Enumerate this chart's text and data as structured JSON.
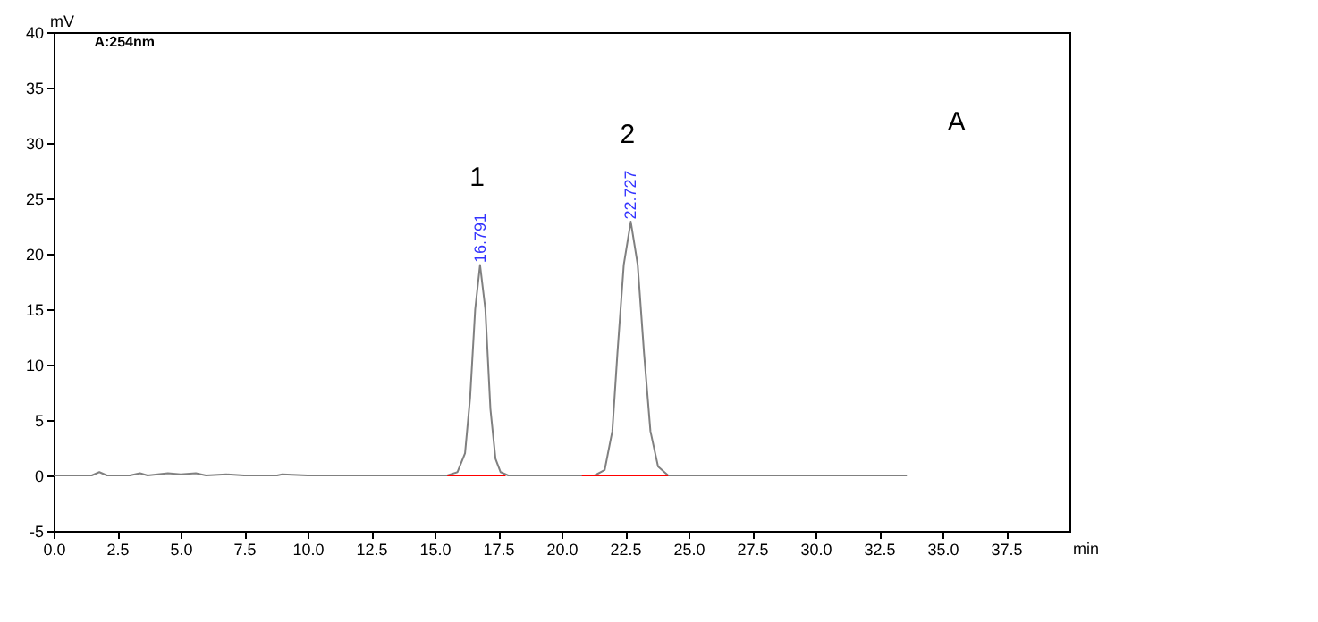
{
  "chart_data": {
    "type": "line",
    "xlabel": "min",
    "ylabel": "mV",
    "xlim": [
      0,
      40
    ],
    "xticks": [
      {
        "value": 0,
        "label": "0.0"
      },
      2.5,
      {
        "value": 5,
        "label": "5.0"
      },
      7.5,
      {
        "value": 10,
        "label": "10.0"
      },
      12.5,
      {
        "value": 15,
        "label": "15.0"
      },
      17.5,
      {
        "value": 20,
        "label": "20.0"
      },
      22.5,
      {
        "value": 25,
        "label": "25.0"
      },
      27.5,
      {
        "value": 30,
        "label": "30.0"
      },
      32.5,
      {
        "value": 35,
        "label": "35.0"
      },
      37.5
    ],
    "ylim": [
      -5,
      40
    ],
    "yticks": [
      -5,
      0,
      5,
      10,
      15,
      20,
      25,
      30,
      35,
      40
    ],
    "grid": false,
    "marker": "none",
    "line_style": "solid",
    "series": [
      {
        "color": "#808080",
        "x": [
          0,
          1.5,
          1.8,
          2.1,
          3.0,
          3.4,
          3.7,
          4.5,
          5.0,
          5.6,
          6.0,
          6.8,
          7.5,
          8.8,
          9.0,
          10,
          12,
          14,
          15.5,
          15.9,
          16.2,
          16.4,
          16.6,
          16.791,
          17.0,
          17.2,
          17.4,
          17.6,
          17.9,
          19,
          20.5,
          21.3,
          21.7,
          22.0,
          22.2,
          22.45,
          22.727,
          23.0,
          23.25,
          23.5,
          23.8,
          24.2,
          26,
          30,
          33.6
        ],
        "values": [
          0,
          0,
          0.3,
          0,
          0,
          0.2,
          0,
          0.2,
          0.1,
          0.2,
          0,
          0.1,
          0,
          0,
          0.1,
          0,
          0,
          0,
          0,
          0.3,
          2,
          7,
          15,
          19,
          15,
          6,
          1.5,
          0.3,
          0,
          0,
          0,
          0,
          0.5,
          4,
          11,
          19,
          22.9,
          19,
          11,
          4,
          0.8,
          0,
          0,
          0,
          0
        ]
      },
      {
        "color": "#ff0000",
        "x": [
          15.5,
          17.8,
          19,
          20.8,
          24.2
        ],
        "values": [
          0,
          0,
          null,
          0,
          0
        ]
      }
    ],
    "annotations": [
      "A:254nm",
      "A",
      "1",
      "2",
      {
        "text": "16.791",
        "x": 16.791,
        "y": 19.2
      },
      {
        "text": "22.727",
        "x": 22.727,
        "y": 23.1
      }
    ]
  }
}
